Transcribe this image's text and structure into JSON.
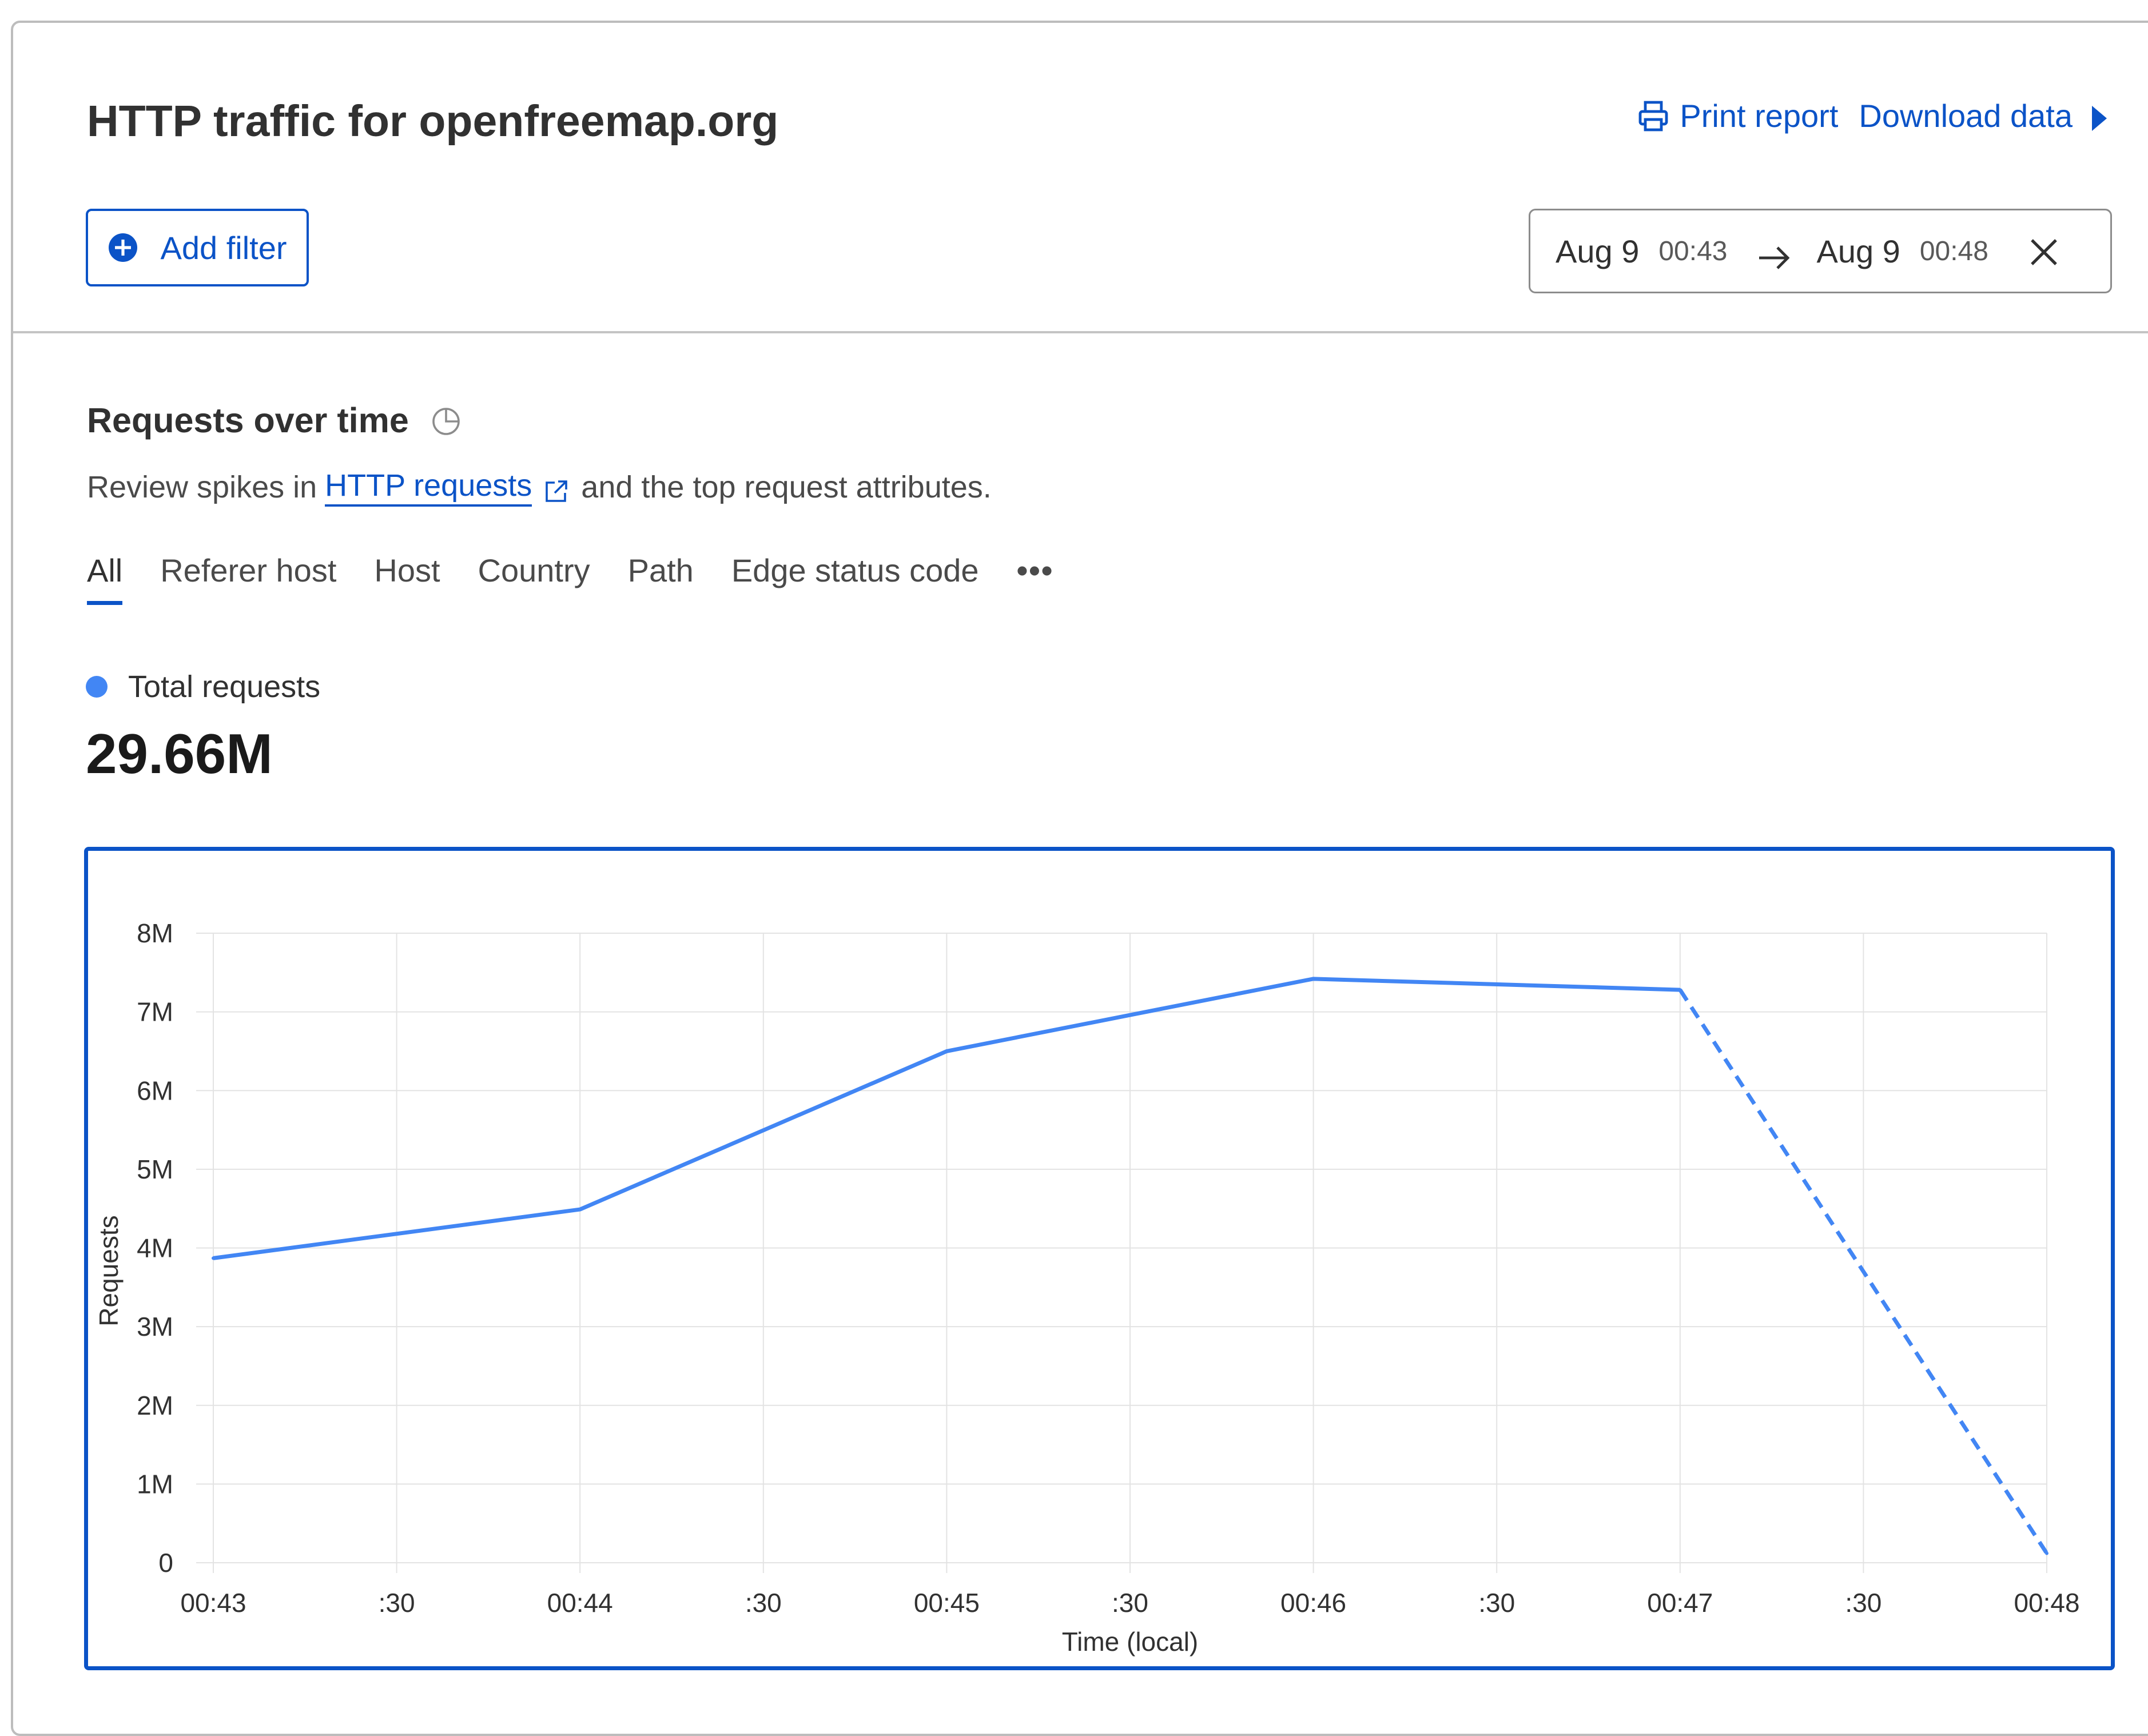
{
  "header": {
    "title": "HTTP traffic for openfreemap.org",
    "print_label": "Print report",
    "download_label": "Download data"
  },
  "filters": {
    "add_filter_label": "Add filter",
    "date_range": {
      "start_date": "Aug 9",
      "start_time": "00:43",
      "end_date": "Aug 9",
      "end_time": "00:48"
    }
  },
  "section": {
    "title": "Requests over time",
    "desc_before": "Review spikes in",
    "desc_link": "HTTP requests",
    "desc_after": "and the top request attributes."
  },
  "tabs": [
    {
      "label": "All",
      "active": true
    },
    {
      "label": "Referer host",
      "active": false
    },
    {
      "label": "Host",
      "active": false
    },
    {
      "label": "Country",
      "active": false
    },
    {
      "label": "Path",
      "active": false
    },
    {
      "label": "Edge status code",
      "active": false
    },
    {
      "label": "•••",
      "active": false
    }
  ],
  "summary": {
    "legend_label": "Total requests",
    "total_value": "29.66M"
  },
  "colors": {
    "accent": "#0b53c7",
    "series": "#4286f4"
  },
  "icons": {
    "print": "printer-icon",
    "download": "caret-right-icon",
    "add": "plus-circle-icon",
    "arrow": "arrow-right-icon",
    "close": "close-icon",
    "info": "pie-chart-icon",
    "external": "external-link-icon"
  },
  "chart_data": {
    "type": "line",
    "xlabel": "Time (local)",
    "ylabel": "Requests",
    "x_ticks": [
      "00:43",
      ":30",
      "00:44",
      ":30",
      "00:45",
      ":30",
      "00:46",
      ":30",
      "00:47",
      ":30",
      "00:48"
    ],
    "y_ticks": [
      "0",
      "1M",
      "2M",
      "3M",
      "4M",
      "5M",
      "6M",
      "7M",
      "8M"
    ],
    "ylim": [
      0,
      8000000
    ],
    "grid": true,
    "series": [
      {
        "name": "Total requests",
        "x": [
          "00:43",
          "00:44",
          "00:45",
          "00:46",
          "00:47",
          "00:48"
        ],
        "values": [
          3870000,
          4490000,
          6500000,
          7420000,
          7280000,
          120000
        ],
        "dashed_from_index": 4
      }
    ]
  }
}
